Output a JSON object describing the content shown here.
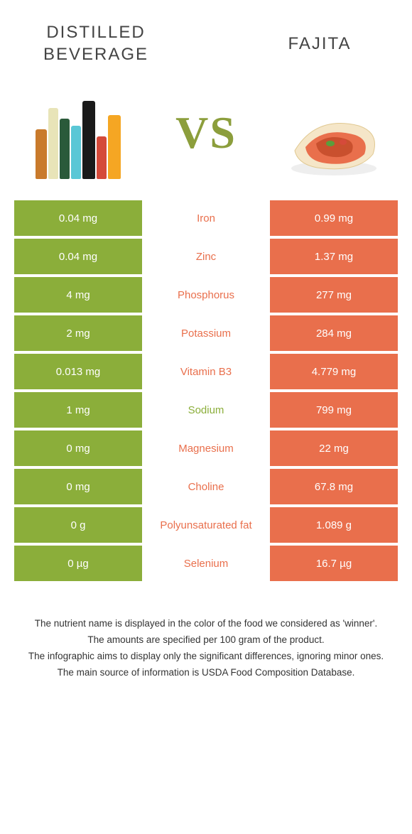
{
  "header": {
    "left_title": "DISTILLED BEVERAGE",
    "right_title": "FAJITA",
    "vs_label": "VS",
    "vs_color": "#8c9e3c"
  },
  "colors": {
    "left_food": "#8bae3a",
    "right_food": "#e96f4c",
    "text_white": "#ffffff",
    "mid_bg": "#ffffff"
  },
  "nutrients": [
    {
      "name": "Iron",
      "left": "0.04 mg",
      "right": "0.99 mg",
      "winner": "right"
    },
    {
      "name": "Zinc",
      "left": "0.04 mg",
      "right": "1.37 mg",
      "winner": "right"
    },
    {
      "name": "Phosphorus",
      "left": "4 mg",
      "right": "277 mg",
      "winner": "right"
    },
    {
      "name": "Potassium",
      "left": "2 mg",
      "right": "284 mg",
      "winner": "right"
    },
    {
      "name": "Vitamin B3",
      "left": "0.013 mg",
      "right": "4.779 mg",
      "winner": "right"
    },
    {
      "name": "Sodium",
      "left": "1 mg",
      "right": "799 mg",
      "winner": "left"
    },
    {
      "name": "Magnesium",
      "left": "0 mg",
      "right": "22 mg",
      "winner": "right"
    },
    {
      "name": "Choline",
      "left": "0 mg",
      "right": "67.8 mg",
      "winner": "right"
    },
    {
      "name": "Polyunsaturated fat",
      "left": "0 g",
      "right": "1.089 g",
      "winner": "right"
    },
    {
      "name": "Selenium",
      "left": "0 µg",
      "right": "16.7 µg",
      "winner": "right"
    }
  ],
  "footnotes": [
    "The nutrient name is displayed in the color of the food we considered as 'winner'.",
    "The amounts are specified per 100 gram of the product.",
    "The infographic aims to display only the significant differences, ignoring minor ones.",
    "The main source of information is USDA Food Composition Database."
  ]
}
